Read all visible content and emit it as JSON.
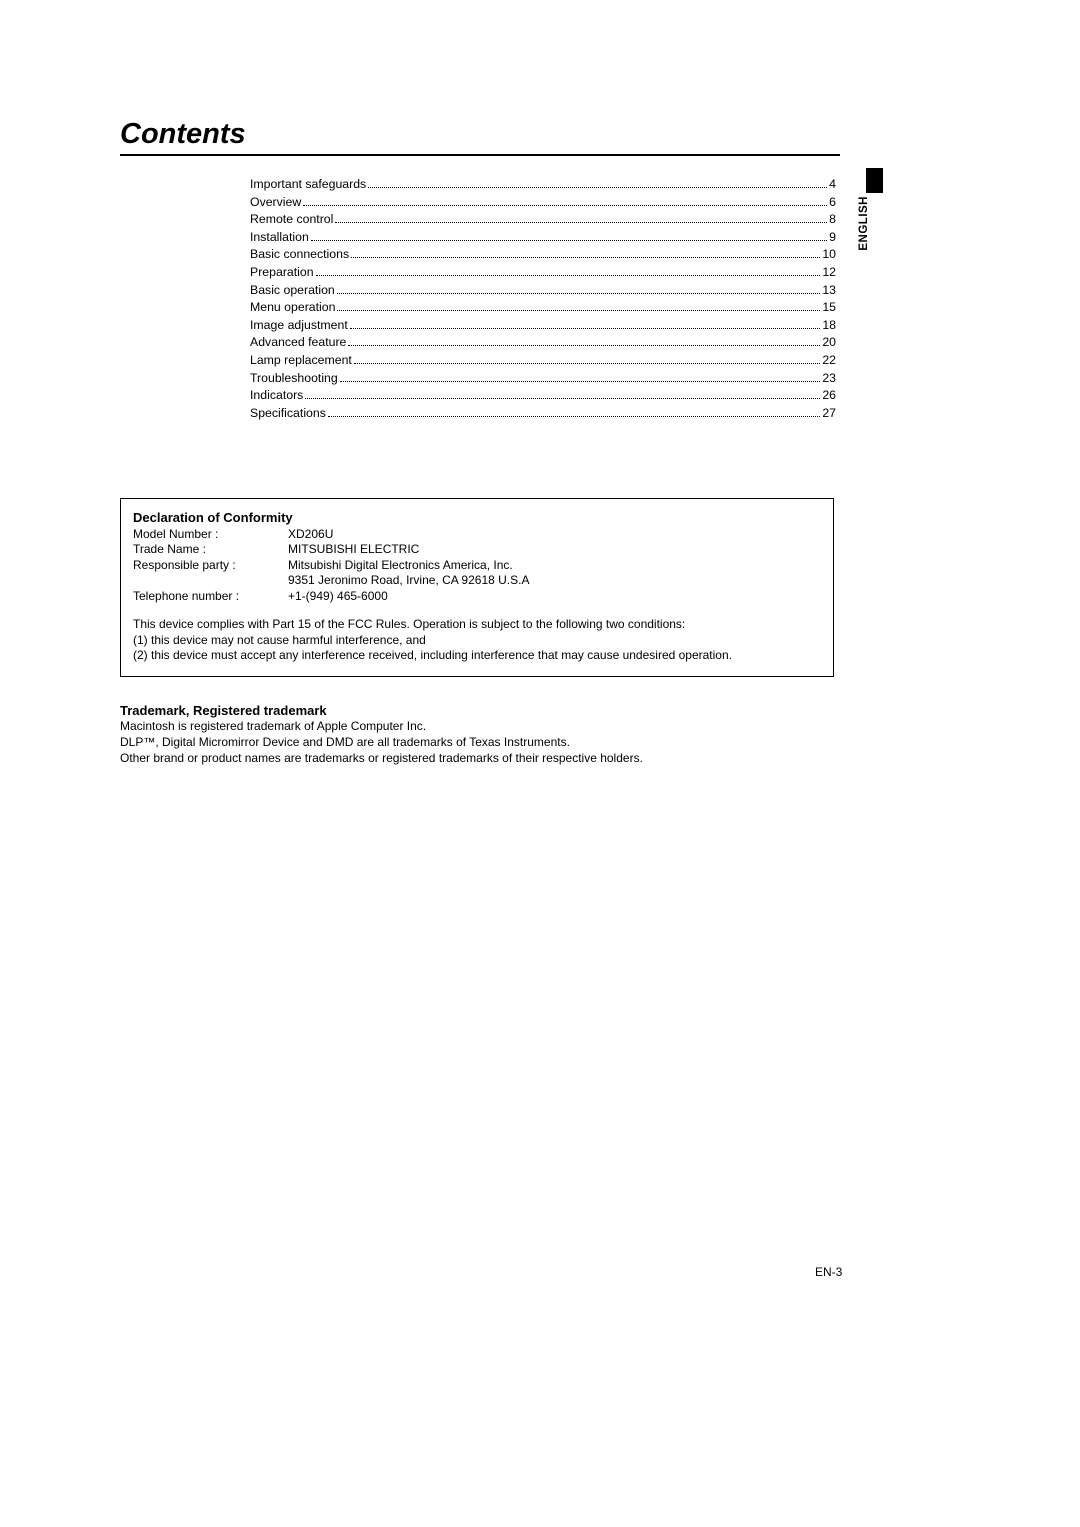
{
  "title": "Contents",
  "side_label": "ENGLISH",
  "toc": [
    {
      "label": "Important safeguards",
      "page": "4"
    },
    {
      "label": "Overview",
      "page": "6"
    },
    {
      "label": "Remote control",
      "page": "8"
    },
    {
      "label": "Installation",
      "page": "9"
    },
    {
      "label": "Basic connections",
      "page": "10"
    },
    {
      "label": "Preparation",
      "page": "12"
    },
    {
      "label": "Basic operation",
      "page": "13"
    },
    {
      "label": "Menu operation",
      "page": "15"
    },
    {
      "label": "Image adjustment",
      "page": "18"
    },
    {
      "label": "Advanced feature",
      "page": "20"
    },
    {
      "label": "Lamp replacement",
      "page": "22"
    },
    {
      "label": "Troubleshooting",
      "page": "23"
    },
    {
      "label": "Indicators",
      "page": "26"
    },
    {
      "label": "Specifications",
      "page": "27"
    }
  ],
  "declaration": {
    "title": "Declaration of Conformity",
    "rows": [
      {
        "key": "Model Number :",
        "val": "XD206U"
      },
      {
        "key": "Trade Name :",
        "val": "MITSUBISHI ELECTRIC"
      },
      {
        "key": "Responsible party :",
        "val": "Mitsubishi Digital Electronics America, Inc."
      },
      {
        "key": "",
        "val": "9351 Jeronimo Road, Irvine, CA 92618 U.S.A"
      },
      {
        "key": "Telephone number :",
        "val": "+1-(949) 465-6000"
      }
    ],
    "body1": "This device complies with Part 15 of the FCC Rules. Operation is subject to the following two conditions:",
    "body2": "(1) this device may not cause harmful interference, and",
    "body3": "(2) this device must accept any interference received, including interference that may cause undesired operation."
  },
  "trademark": {
    "title": "Trademark, Registered trademark",
    "line1": "Macintosh is registered trademark of Apple Computer Inc.",
    "line2": "DLP™, Digital Micromirror Device and DMD are all trademarks of Texas Instruments.",
    "line3": "Other brand or product names are trademarks or registered trademarks of their respective holders."
  },
  "footer": "EN-3"
}
